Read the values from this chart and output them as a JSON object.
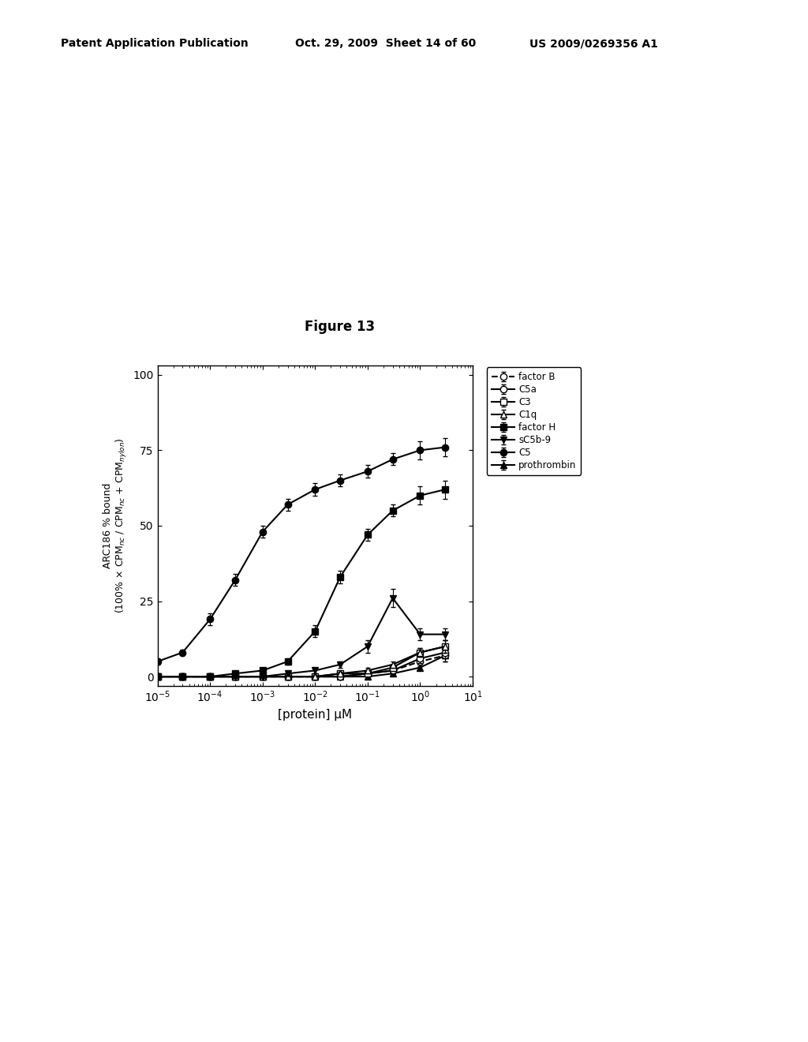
{
  "title": "Figure 13",
  "header_left": "Patent Application Publication",
  "header_mid": "Oct. 29, 2009  Sheet 14 of 60",
  "header_right": "US 2009/0269356 A1",
  "xlabel": "[protein] μM",
  "xlim_log": [
    -5,
    1
  ],
  "ylim": [
    -3,
    103
  ],
  "yticks": [
    0,
    25,
    50,
    75,
    100
  ],
  "series": {
    "C5": {
      "x": [
        1e-05,
        3e-05,
        0.0001,
        0.0003,
        0.001,
        0.003,
        0.01,
        0.03,
        0.1,
        0.3,
        1.0,
        3.0
      ],
      "y": [
        5,
        8,
        19,
        32,
        48,
        57,
        62,
        65,
        68,
        72,
        75,
        76
      ],
      "yerr": [
        1,
        1,
        2,
        2,
        2,
        2,
        2,
        2,
        2,
        2,
        3,
        3
      ],
      "marker": "o",
      "markersize": 6,
      "markerfacecolor": "black",
      "markeredgecolor": "black",
      "color": "black",
      "linestyle": "-",
      "linewidth": 1.5,
      "zorder": 10
    },
    "factor H": {
      "x": [
        1e-05,
        3e-05,
        0.0001,
        0.0003,
        0.001,
        0.003,
        0.01,
        0.03,
        0.1,
        0.3,
        1.0,
        3.0
      ],
      "y": [
        0,
        0,
        0,
        1,
        2,
        5,
        15,
        33,
        47,
        55,
        60,
        62
      ],
      "yerr": [
        0.5,
        0.5,
        0.5,
        0.5,
        1,
        1,
        2,
        2,
        2,
        2,
        3,
        3
      ],
      "marker": "s",
      "markersize": 6,
      "markerfacecolor": "black",
      "markeredgecolor": "black",
      "color": "black",
      "linestyle": "-",
      "linewidth": 1.5,
      "zorder": 9
    },
    "sC5b-9": {
      "x": [
        1e-05,
        3e-05,
        0.0001,
        0.0003,
        0.001,
        0.003,
        0.01,
        0.03,
        0.1,
        0.3,
        1.0,
        3.0
      ],
      "y": [
        0,
        0,
        0,
        0,
        0,
        1,
        2,
        4,
        10,
        26,
        14,
        14
      ],
      "yerr": [
        0.5,
        0.5,
        0.5,
        0.5,
        0.5,
        0.5,
        1,
        1,
        2,
        3,
        2,
        2
      ],
      "marker": "v",
      "markersize": 6,
      "markerfacecolor": "black",
      "markeredgecolor": "black",
      "color": "black",
      "linestyle": "-",
      "linewidth": 1.5,
      "zorder": 8
    },
    "C1q": {
      "x": [
        1e-05,
        3e-05,
        0.0001,
        0.0003,
        0.001,
        0.003,
        0.01,
        0.03,
        0.1,
        0.3,
        1.0,
        3.0
      ],
      "y": [
        0,
        0,
        0,
        0,
        0,
        0,
        0,
        1,
        2,
        4,
        8,
        10
      ],
      "yerr": [
        0.5,
        0.5,
        0.5,
        0.5,
        0.5,
        0.5,
        0.5,
        0.5,
        1,
        1,
        1.5,
        2
      ],
      "marker": "^",
      "markersize": 6,
      "markerfacecolor": "white",
      "markeredgecolor": "black",
      "color": "black",
      "linestyle": "-",
      "linewidth": 1.5,
      "zorder": 7
    },
    "C3": {
      "x": [
        1e-05,
        3e-05,
        0.0001,
        0.0003,
        0.001,
        0.003,
        0.01,
        0.03,
        0.1,
        0.3,
        1.0,
        3.0
      ],
      "y": [
        0,
        0,
        0,
        0,
        0,
        0,
        0,
        1,
        1,
        3,
        8,
        10
      ],
      "yerr": [
        0.5,
        0.5,
        0.5,
        0.5,
        0.5,
        0.5,
        0.5,
        0.5,
        1,
        1,
        1.5,
        2
      ],
      "marker": "s",
      "markersize": 6,
      "markerfacecolor": "white",
      "markeredgecolor": "black",
      "color": "black",
      "linestyle": "-",
      "linewidth": 1.5,
      "zorder": 6
    },
    "C5a": {
      "x": [
        1e-05,
        3e-05,
        0.0001,
        0.0003,
        0.001,
        0.003,
        0.01,
        0.03,
        0.1,
        0.3,
        1.0,
        3.0
      ],
      "y": [
        0,
        0,
        0,
        0,
        0,
        0,
        0,
        0,
        1,
        2,
        6,
        8
      ],
      "yerr": [
        0.5,
        0.5,
        0.5,
        0.5,
        0.5,
        0.5,
        0.5,
        0.5,
        0.5,
        1,
        1.5,
        2
      ],
      "marker": "o",
      "markersize": 6,
      "markerfacecolor": "white",
      "markeredgecolor": "black",
      "color": "black",
      "linestyle": "-",
      "linewidth": 1.5,
      "zorder": 5
    },
    "factor B": {
      "x": [
        1e-05,
        3e-05,
        0.0001,
        0.0003,
        0.001,
        0.003,
        0.01,
        0.03,
        0.1,
        0.3,
        1.0,
        3.0
      ],
      "y": [
        0,
        0,
        0,
        0,
        0,
        0,
        0,
        0,
        1,
        2,
        5,
        7
      ],
      "yerr": [
        0.5,
        0.5,
        0.5,
        0.5,
        0.5,
        0.5,
        0.5,
        0.5,
        0.5,
        1,
        1.5,
        2
      ],
      "marker": "o",
      "markersize": 6,
      "markerfacecolor": "white",
      "markeredgecolor": "black",
      "color": "black",
      "linestyle": "--",
      "linewidth": 1.5,
      "zorder": 4
    },
    "prothrombin": {
      "x": [
        1e-05,
        3e-05,
        0.0001,
        0.0003,
        0.001,
        0.003,
        0.01,
        0.03,
        0.1,
        0.3,
        1.0,
        3.0
      ],
      "y": [
        0,
        0,
        0,
        0,
        0,
        0,
        0,
        0,
        0,
        1,
        3,
        7
      ],
      "yerr": [
        0.5,
        0.5,
        0.5,
        0.5,
        0.5,
        0.5,
        0.5,
        0.5,
        0.5,
        0.5,
        1,
        2
      ],
      "marker": "^",
      "markersize": 6,
      "markerfacecolor": "black",
      "markeredgecolor": "black",
      "color": "black",
      "linestyle": "-",
      "linewidth": 1.5,
      "zorder": 3
    }
  },
  "legend_order": [
    "factor B",
    "C5a",
    "C3",
    "C1q",
    "factor H",
    "sC5b-9",
    "C5",
    "prothrombin"
  ],
  "background_color": "#ffffff",
  "plot_bg_color": "#ffffff"
}
